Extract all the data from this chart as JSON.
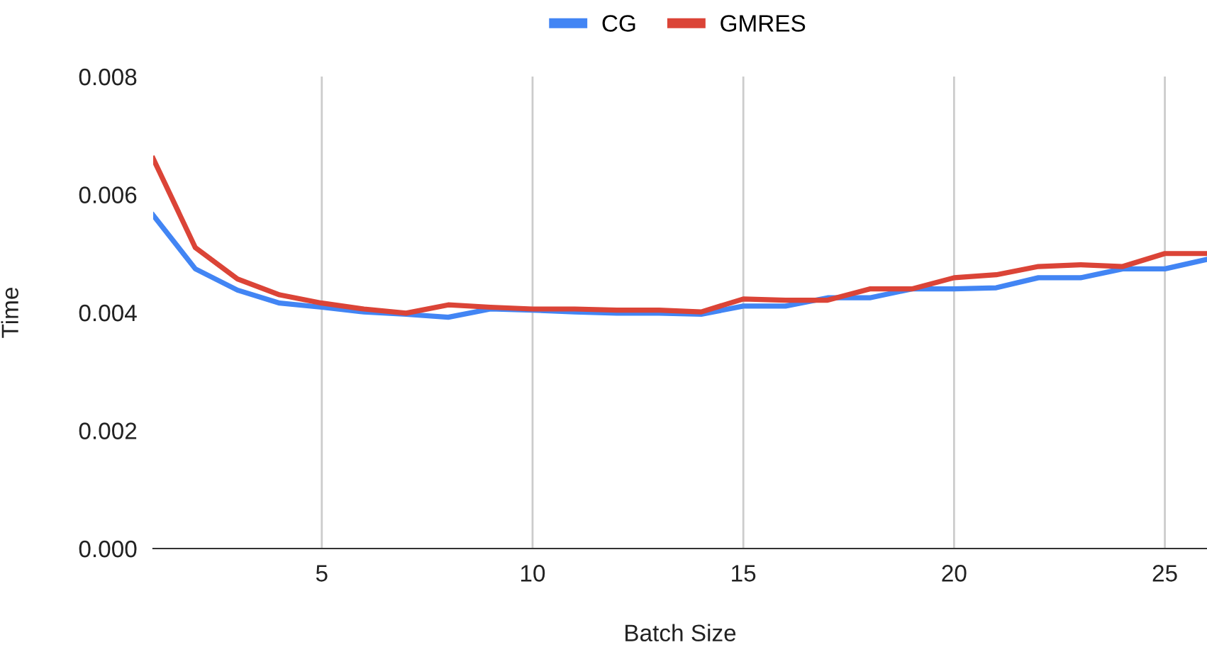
{
  "chart_data": {
    "type": "line",
    "xlabel": "Batch Size",
    "ylabel": "Time",
    "x": [
      1,
      2,
      3,
      4,
      5,
      6,
      7,
      8,
      9,
      10,
      11,
      12,
      13,
      14,
      15,
      16,
      17,
      18,
      19,
      20,
      21,
      22,
      23,
      24,
      25,
      26
    ],
    "series": [
      {
        "name": "CG",
        "color": "#4285f4",
        "values": [
          0.00565,
          0.00474,
          0.00438,
          0.00416,
          0.00409,
          0.00401,
          0.00397,
          0.00392,
          0.00406,
          0.00404,
          0.00401,
          0.00399,
          0.00399,
          0.00397,
          0.00411,
          0.00411,
          0.00425,
          0.00425,
          0.0044,
          0.0044,
          0.00442,
          0.00459,
          0.00459,
          0.00474,
          0.00474,
          0.0049
        ]
      },
      {
        "name": "GMRES",
        "color": "#db4437",
        "values": [
          0.00661,
          0.0051,
          0.00457,
          0.0043,
          0.00416,
          0.00406,
          0.00399,
          0.00413,
          0.00409,
          0.00406,
          0.00406,
          0.00404,
          0.00404,
          0.00401,
          0.00423,
          0.00421,
          0.00421,
          0.0044,
          0.0044,
          0.00459,
          0.00464,
          0.00478,
          0.00481,
          0.00478,
          0.005,
          0.005
        ]
      }
    ],
    "xlim": [
      1,
      26
    ],
    "xticks": [
      5,
      10,
      15,
      20,
      25
    ],
    "ylim": [
      0,
      0.008
    ],
    "yticks": [
      {
        "value": 0,
        "label": "0.000"
      },
      {
        "value": 0.002,
        "label": "0.002"
      },
      {
        "value": 0.004,
        "label": "0.004"
      },
      {
        "value": 0.006,
        "label": "0.006"
      },
      {
        "value": 0.008,
        "label": "0.008"
      }
    ],
    "grid": "x",
    "legend": "top",
    "marker": "none",
    "line_style": "solid"
  }
}
